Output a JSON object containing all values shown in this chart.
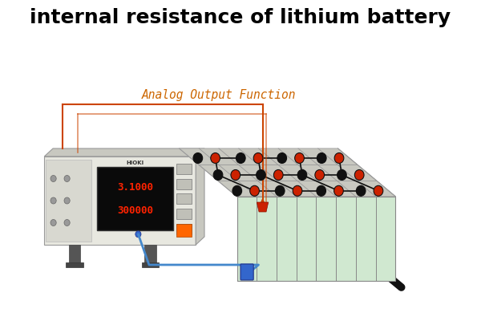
{
  "title": "internal resistance of lithium battery",
  "title_fontsize": 18,
  "title_fontweight": "bold",
  "analog_label": "Analog Output Function",
  "analog_color": "#CC6600",
  "analog_fontsize": 10.5,
  "bg_color": "#ffffff",
  "display_text1": "3.1000",
  "display_text2": "300000",
  "display_red": "#ff2200",
  "battery_front_color": "#d0e8d0",
  "battery_side_color": "#b8d8b8",
  "battery_top_color": "#c8c8c0",
  "battery_top_edge": "#aaaaaa",
  "terminal_black": "#111111",
  "terminal_red": "#cc2200",
  "wire_blue": "#4488cc",
  "wire_orange": "#cc4400",
  "rod_color": "#111111",
  "meter_body": "#e8e8e0",
  "meter_dark": "#c8c8c0",
  "meter_front": "#d8d8d0"
}
